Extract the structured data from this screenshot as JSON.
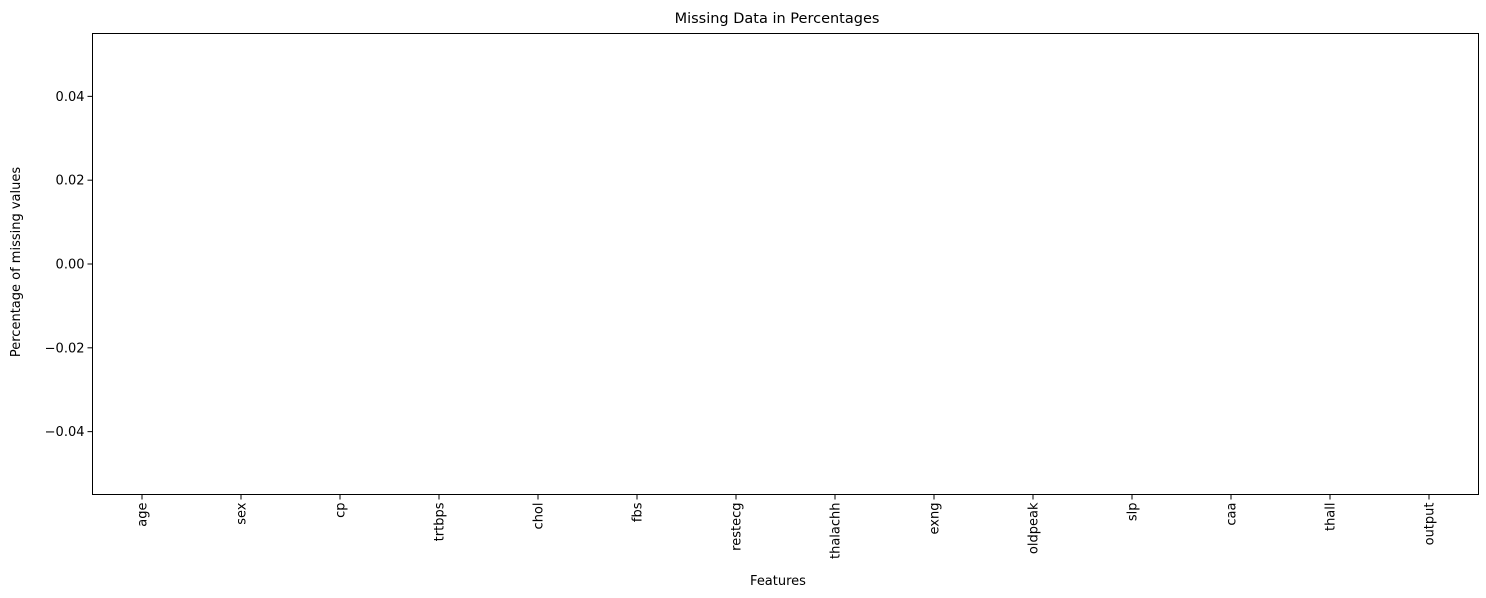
{
  "chart_data": {
    "type": "bar",
    "title": "Missing Data in Percentages",
    "xlabel": "Features",
    "ylabel": "Percentage of missing values",
    "categories": [
      "age",
      "sex",
      "cp",
      "trtbps",
      "chol",
      "fbs",
      "restecg",
      "thalachh",
      "exng",
      "oldpeak",
      "slp",
      "caa",
      "thall",
      "output"
    ],
    "values": [
      0,
      0,
      0,
      0,
      0,
      0,
      0,
      0,
      0,
      0,
      0,
      0,
      0,
      0
    ],
    "ylim": [
      -0.055,
      0.055
    ],
    "yticks": [
      -0.04,
      -0.02,
      0.0,
      0.02,
      0.04
    ],
    "ytick_labels": [
      "−0.04",
      "−0.02",
      "0.00",
      "0.02",
      "0.04"
    ],
    "grid": false,
    "legend": "none"
  }
}
